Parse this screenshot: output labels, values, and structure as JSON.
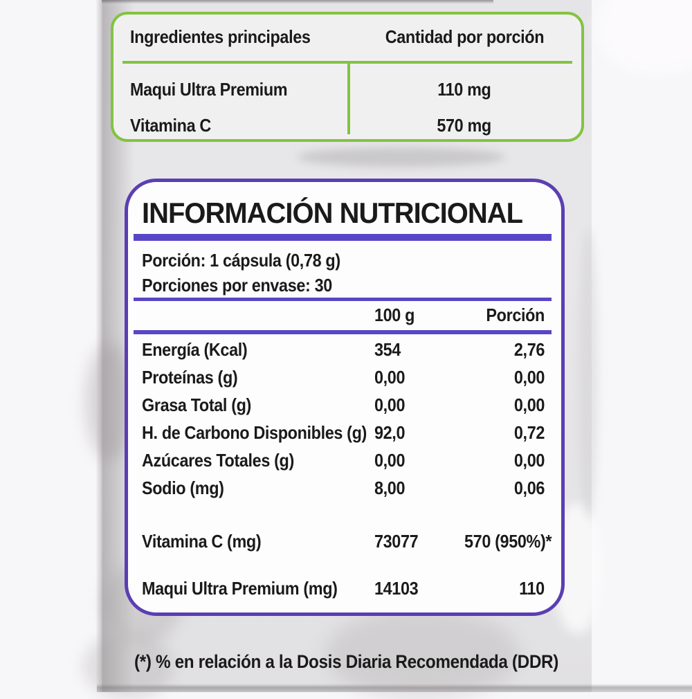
{
  "colors": {
    "green": "#82c341",
    "purple_border": "#5b3eb2",
    "purple_bar": "#5747c7"
  },
  "ingredients_box": {
    "col1_header": "Ingredientes principales",
    "col2_header": "Cantidad por porción",
    "rows": [
      {
        "name": "Maqui Ultra Premium",
        "amount": "110 mg"
      },
      {
        "name": "Vitamina C",
        "amount": "570 mg"
      }
    ]
  },
  "nutrition_box": {
    "title": "INFORMACIÓN NUTRICIONAL",
    "serving_line1": "Porción: 1 cápsula (0,78 g)",
    "serving_line2": "Porciones por envase: 30",
    "col_per100": "100 g",
    "col_portion": "Porción",
    "rows": [
      {
        "label": "Energía (Kcal)",
        "per100": "354",
        "portion": "2,76"
      },
      {
        "label": "Proteínas (g)",
        "per100": "0,00",
        "portion": "0,00"
      },
      {
        "label": "Grasa Total (g)",
        "per100": "0,00",
        "portion": "0,00"
      },
      {
        "label": "H. de Carbono Disponibles (g)",
        "per100": "92,0",
        "portion": "0,72"
      },
      {
        "label": "Azúcares Totales (g)",
        "per100": "0,00",
        "portion": "0,00"
      },
      {
        "label": "Sodio (mg)",
        "per100": "8,00",
        "portion": "0,06"
      }
    ],
    "extra_rows": [
      {
        "label": "Vitamina C (mg)",
        "per100": "73077",
        "portion": "570 (950%)*"
      },
      {
        "label": "Maqui Ultra Premium (mg)",
        "per100": "14103",
        "portion": "110"
      }
    ]
  },
  "footnote": "(*) % en relación a la Dosis Diaria Recomendada (DDR)"
}
